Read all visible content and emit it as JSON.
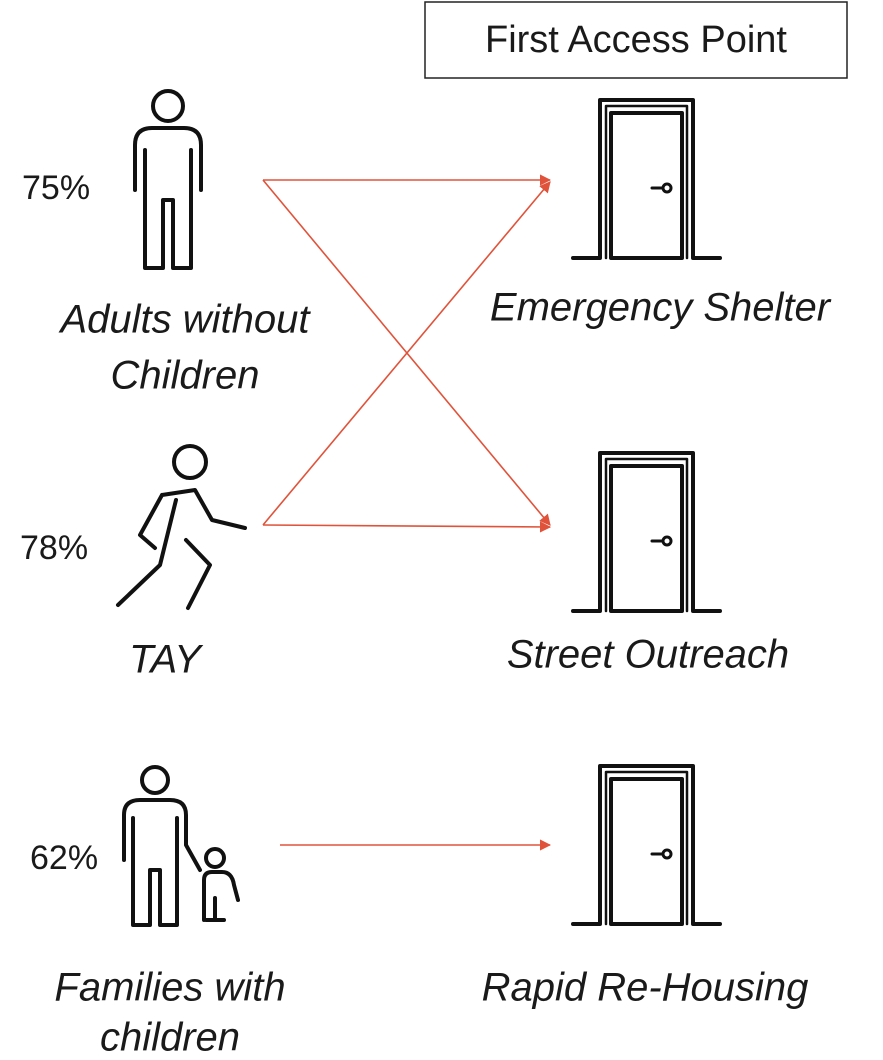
{
  "header": {
    "title": "First Access Point"
  },
  "groups": [
    {
      "percent": "75%",
      "label_lines": [
        "Adults without",
        "Children"
      ]
    },
    {
      "percent": "78%",
      "label_lines": [
        "TAY"
      ]
    },
    {
      "percent": "62%",
      "label_lines": [
        "Families with",
        "children"
      ]
    }
  ],
  "destinations": [
    {
      "label": "Emergency Shelter"
    },
    {
      "label": "Street Outreach"
    },
    {
      "label": "Rapid Re-Housing"
    }
  ]
}
